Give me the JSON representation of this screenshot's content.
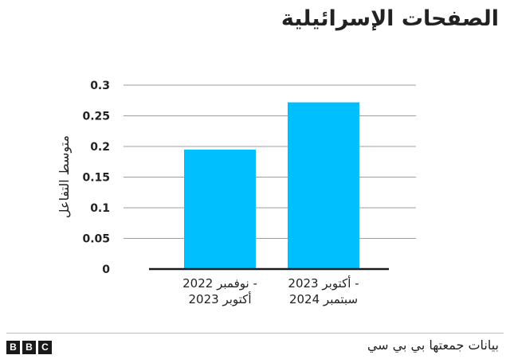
{
  "title": "الصفحات الإسرائيلية",
  "source": "بيانات جمعتها بي بي سي",
  "logo": {
    "letters": [
      "B",
      "B",
      "C"
    ]
  },
  "colors": {
    "bar": "#00bfff",
    "grid": "#9e9e9e",
    "axis": "#1a1a1a",
    "text": "#222222"
  },
  "chart_data": {
    "type": "bar",
    "title": "الصفحات الإسرائيلية",
    "ylabel": "متوسط التفاعل",
    "xlabel": "",
    "ylim": [
      0,
      0.3
    ],
    "yticks": [
      {
        "value": 0,
        "label": "0"
      },
      {
        "value": 0.05,
        "label": "0.05"
      },
      {
        "value": 0.1,
        "label": "0.1"
      },
      {
        "value": 0.15,
        "label": "0.15"
      },
      {
        "value": 0.2,
        "label": "0.2"
      },
      {
        "value": 0.25,
        "label": "0.25"
      },
      {
        "value": 0.3,
        "label": "0.3"
      }
    ],
    "grid": true,
    "categories": [
      [
        "نوفمبر 2022 -",
        "أكتوبر 2023"
      ],
      [
        "أكتوبر 2023 -",
        "سبتمبر 2024"
      ]
    ],
    "values": [
      0.195,
      0.272
    ]
  }
}
